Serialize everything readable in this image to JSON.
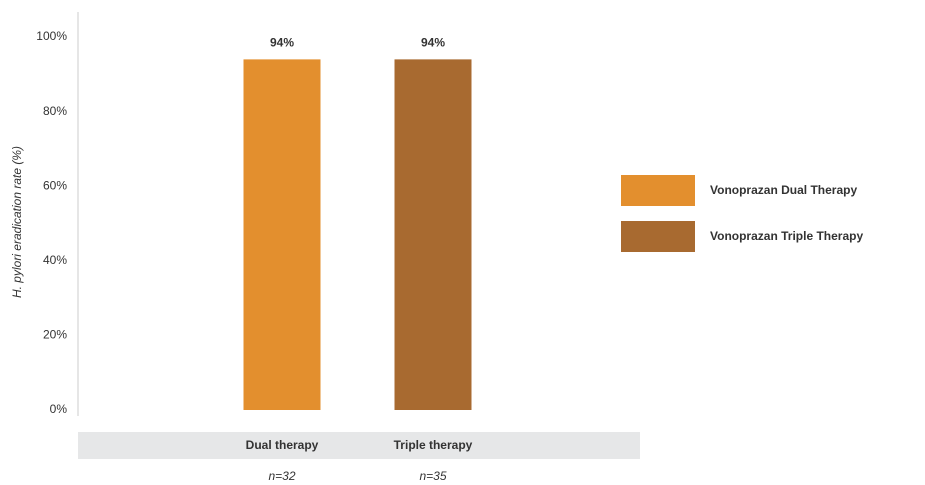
{
  "chart_data": {
    "type": "bar",
    "ylabel": "H. pylori eradication rate (%)",
    "categories": [
      "Dual therapy",
      "Triple therapy"
    ],
    "category_notes": [
      "n=32",
      "n=35"
    ],
    "series": [
      {
        "name": "Vonoprazan Dual Therapy",
        "color": "#e38f2e",
        "values": [
          94,
          null
        ],
        "value_labels": [
          "94%",
          null
        ]
      },
      {
        "name": "Vonoprazan Triple Therapy",
        "color": "#a86a30",
        "values": [
          null,
          94
        ],
        "value_labels": [
          null,
          "94%"
        ]
      }
    ],
    "ylim": [
      0,
      100
    ],
    "yticks": [
      {
        "value": 0,
        "label": "0%"
      },
      {
        "value": 20,
        "label": "20%"
      },
      {
        "value": 40,
        "label": "40%"
      },
      {
        "value": 60,
        "label": "60%"
      },
      {
        "value": 80,
        "label": "80%"
      },
      {
        "value": 100,
        "label": "100%"
      }
    ],
    "grid": false,
    "legend": "right"
  }
}
